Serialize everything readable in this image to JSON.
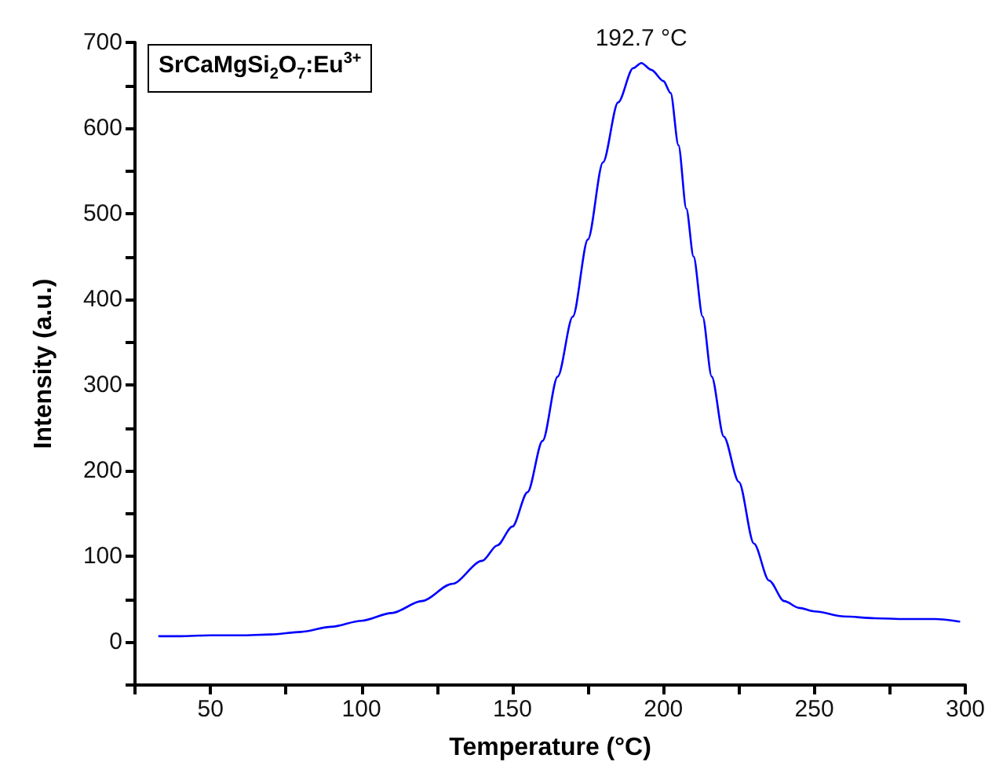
{
  "chart_data": {
    "type": "line",
    "xlabel": "Temperature (°C)",
    "ylabel": "Intensity (a.u.)",
    "annotations": [
      {
        "text": "192.7 °C",
        "x": 192.7,
        "y": 676
      },
      "SrCaMgSi$_{2}$O$_{7}$:Eu$^{3+}$"
    ],
    "x": [
      33,
      40,
      50,
      60,
      70,
      80,
      90,
      100,
      110,
      120,
      130,
      140,
      145,
      150,
      155,
      160,
      165,
      170,
      175,
      180,
      185,
      190,
      192.7,
      196,
      200,
      202.4,
      205,
      207.6,
      210,
      213,
      216,
      220,
      225,
      230,
      235,
      240,
      245,
      250,
      260,
      270,
      280,
      290,
      298
    ],
    "series": [
      {
        "color": "#0000ff",
        "values": [
          7,
          7,
          8,
          8,
          9,
          12,
          18,
          25,
          34,
          48,
          68,
          95,
          113,
          135,
          175,
          235,
          310,
          380,
          470,
          560,
          630,
          670,
          676,
          668,
          655,
          641,
          580,
          506,
          450,
          380,
          310,
          240,
          187,
          115,
          72,
          48,
          40,
          36,
          30,
          28,
          27,
          27,
          24
        ]
      }
    ],
    "xlim": [
      25,
      300
    ],
    "xticks": [
      {
        "value": 25,
        "label": null
      },
      50,
      {
        "value": 75,
        "label": null
      },
      100,
      {
        "value": 125,
        "label": null
      },
      150,
      {
        "value": 175,
        "label": null
      },
      200,
      {
        "value": 225,
        "label": null
      },
      250,
      {
        "value": 275,
        "label": null
      },
      300
    ],
    "ylim": [
      -50,
      700
    ],
    "yticks": [
      {
        "value": -50,
        "label": null
      },
      0,
      {
        "value": 50,
        "label": null
      },
      100,
      {
        "value": 150,
        "label": null
      },
      200,
      {
        "value": 250,
        "label": null
      },
      300,
      {
        "value": 350,
        "label": null
      },
      400,
      {
        "value": 450,
        "label": null
      },
      500,
      {
        "value": 550,
        "label": null
      },
      600,
      {
        "value": 650,
        "label": null
      },
      700
    ],
    "grid": false,
    "marker": "none",
    "line_style": "solid"
  }
}
